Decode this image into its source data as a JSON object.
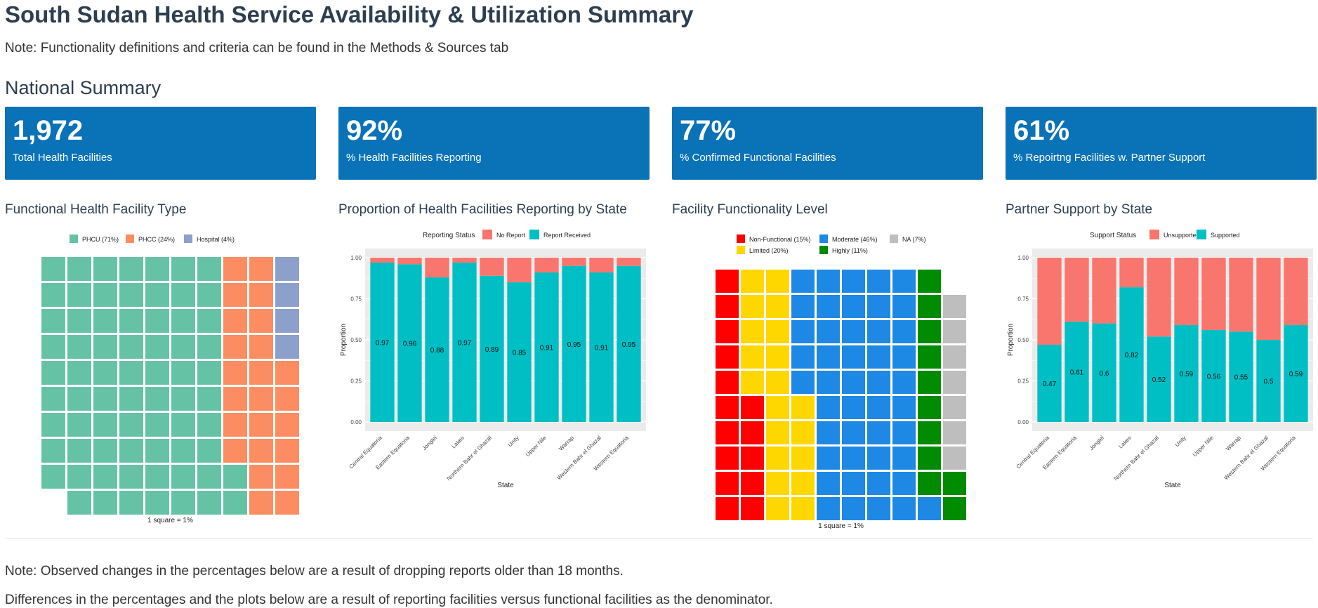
{
  "header": {
    "title": "South Sudan Health Service Availability & Utilization Summary",
    "note": "Note: Functionality definitions and criteria can be found in the Methods & Sources tab",
    "section": "National Summary"
  },
  "value_boxes": [
    {
      "value": "1,972",
      "caption": "Total Health Facilities"
    },
    {
      "value": "92%",
      "caption": "% Health Facilities Reporting"
    },
    {
      "value": "77%",
      "caption": "% Confirmed Functional Facilities"
    },
    {
      "value": "61%",
      "caption": "% Repoirtng Facilities w. Partner Support"
    }
  ],
  "colors": {
    "valuebox_bg": "#0a72b7",
    "panel_bg": "#ebebeb",
    "gridline": "#ffffff"
  },
  "footer": {
    "note1": "Note: Observed changes in the percentages below are a result of dropping reports older than 18 months.",
    "note2": "Differences in the percentages and the plots below are a result of reporting facilities versus functional facilities as the denominator."
  },
  "chart_data": [
    {
      "type": "waffle",
      "title": "Functional Health Facility Type",
      "caption": "1 square = 1%",
      "categories": [
        "PHCU (71%)",
        "PHCC (24%)",
        "Hospital (4%)"
      ],
      "counts": [
        71,
        24,
        4
      ],
      "colors": [
        "#66c2a5",
        "#fc8d62",
        "#8da0cb"
      ],
      "rows": 10
    },
    {
      "type": "bar",
      "stacked": true,
      "title": "Proportion of Health Facilities Reporting by State",
      "legend_title": "Reporting Status",
      "xlabel": "State",
      "ylabel": "Proportion",
      "ylim": [
        0,
        1
      ],
      "yticks": [
        "0.00",
        "0.25",
        "0.50",
        "0.75",
        "1.00"
      ],
      "categories": [
        "Central Equatoria",
        "Eastern Equatoria",
        "Jonglei",
        "Lakes",
        "Northern Bahr el Ghazal",
        "Unity",
        "Upper Nile",
        "Warrap",
        "Western Bahr el Ghazal",
        "Western Equatoria"
      ],
      "series": [
        {
          "name": "No Report",
          "color": "#f8766d",
          "values": [
            0.03,
            0.04,
            0.12,
            0.03,
            0.11,
            0.15,
            0.09,
            0.05,
            0.09,
            0.05
          ]
        },
        {
          "name": "Report Received",
          "color": "#00bfc4",
          "values": [
            0.97,
            0.96,
            0.88,
            0.97,
            0.89,
            0.85,
            0.91,
            0.95,
            0.91,
            0.95
          ]
        }
      ],
      "labels": [
        "0.97",
        "0.96",
        "0.88",
        "0.97",
        "0.89",
        "0.85",
        "0.91",
        "0.95",
        "0.91",
        "0.95"
      ]
    },
    {
      "type": "waffle",
      "title": "Facility Functionality Level",
      "caption": "1 square = 1%",
      "categories": [
        "Non-Functional (15%)",
        "Limited (20%)",
        "Moderate (46%)",
        "Highly (11%)",
        "NA (7%)"
      ],
      "counts": [
        15,
        20,
        46,
        11,
        7
      ],
      "colors": [
        "#ff0000",
        "#ffd700",
        "#1e88e5",
        "#008b00",
        "#bebebe"
      ],
      "rows": 10
    },
    {
      "type": "bar",
      "stacked": true,
      "title": "Partner Support by State",
      "legend_title": "Support Status",
      "xlabel": "State",
      "ylabel": "Proportion",
      "ylim": [
        0,
        1
      ],
      "yticks": [
        "0.00",
        "0.25",
        "0.50",
        "0.75",
        "1.00"
      ],
      "categories": [
        "Central Equatoria",
        "Eastern Equatoria",
        "Jonglei",
        "Lakes",
        "Northern Bahr el Ghazal",
        "Unity",
        "Upper Nile",
        "Warrap",
        "Western Bahr el Ghazal",
        "Western Equatoria"
      ],
      "series": [
        {
          "name": "Unsupported",
          "color": "#f8766d",
          "values": [
            0.53,
            0.39,
            0.4,
            0.18,
            0.48,
            0.41,
            0.44,
            0.45,
            0.5,
            0.41
          ]
        },
        {
          "name": "Supported",
          "color": "#00bfc4",
          "values": [
            0.47,
            0.61,
            0.6,
            0.82,
            0.52,
            0.59,
            0.56,
            0.55,
            0.5,
            0.59
          ]
        }
      ],
      "labels": [
        "0.47",
        "0.61",
        "0.6",
        "0.82",
        "0.52",
        "0.59",
        "0.56",
        "0.55",
        "0.5",
        "0.59"
      ]
    }
  ]
}
